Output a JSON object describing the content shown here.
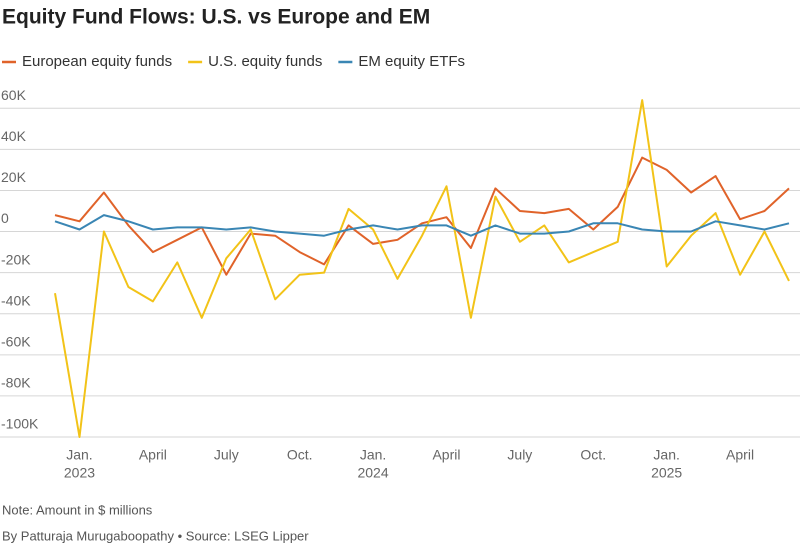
{
  "chart_data": {
    "type": "line",
    "title": "Equity Fund Flows: U.S. vs Europe and EM",
    "categories": [
      null,
      "Jan.",
      null,
      null,
      "April",
      null,
      null,
      "July",
      null,
      null,
      "Oct.",
      null,
      null,
      "Jan.",
      null,
      null,
      "April",
      null,
      null,
      "July",
      null,
      null,
      "Oct.",
      null,
      null,
      "Jan.",
      null,
      null,
      "April",
      null,
      null
    ],
    "years": [
      "2023",
      "2024",
      "2025"
    ],
    "series": [
      {
        "name": "European equity funds",
        "color": "#e0632a",
        "values": [
          8,
          5,
          19,
          3,
          -10,
          -4,
          2,
          -21,
          -1,
          -2,
          -10,
          -16,
          3,
          -6,
          -4,
          4,
          7,
          -8,
          21,
          10,
          9,
          11,
          1,
          12,
          36,
          30,
          19,
          27,
          6,
          10,
          21
        ]
      },
      {
        "name": "U.S. equity funds",
        "color": "#f2c318",
        "values": [
          -30,
          -100,
          0,
          -27,
          -34,
          -15,
          -42,
          -13,
          1,
          -33,
          -21,
          -20,
          11,
          1,
          -23,
          -2,
          22,
          -42,
          17,
          -5,
          3,
          -15,
          -10,
          -5,
          64,
          -17,
          -2,
          9,
          -21,
          0,
          -24
        ]
      },
      {
        "name": "EM equity ETFs",
        "color": "#3a86b4",
        "values": [
          5,
          1,
          8,
          5,
          1,
          2,
          2,
          1,
          2,
          0,
          -1,
          -2,
          1,
          3,
          1,
          3,
          3,
          -2,
          3,
          -1,
          -1,
          0,
          4,
          4,
          1,
          0,
          0,
          5,
          3,
          1,
          4
        ]
      }
    ],
    "ylim": [
      -100,
      65
    ],
    "yticks": [
      {
        "value": 60,
        "label": "60K"
      },
      {
        "value": 40,
        "label": "40K"
      },
      {
        "value": 20,
        "label": "20K"
      },
      0,
      {
        "value": -20,
        "label": "-20K"
      },
      {
        "value": -40,
        "label": "-40K"
      },
      {
        "value": -60,
        "label": "-60K"
      },
      {
        "value": -80,
        "label": "-80K"
      },
      {
        "value": -100,
        "label": "-100K"
      }
    ],
    "grid": true,
    "note": "Note: Amount in $ millions",
    "source": "By Patturaja Murugaboopathy • Source: LSEG Lipper"
  }
}
